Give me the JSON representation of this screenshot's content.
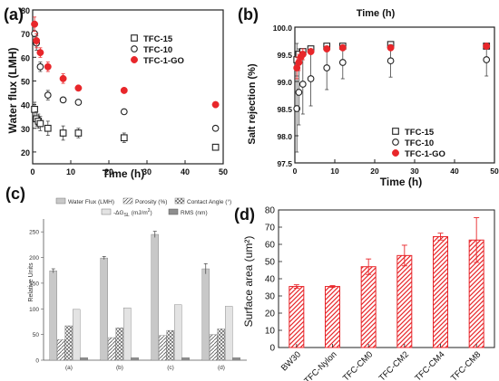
{
  "chart_data": [
    {
      "panel": "(a)",
      "type": "scatter",
      "xlabel": "Time (h)",
      "ylabel": "Water flux (LMH)",
      "xlim": [
        0,
        50
      ],
      "ylim": [
        15,
        80
      ],
      "xticks": [
        "0",
        "10",
        "20",
        "30",
        "40",
        "50"
      ],
      "yticks": [
        "20",
        "30",
        "40",
        "50",
        "60",
        "70",
        "80"
      ],
      "legend_placement": "top-right",
      "series": [
        {
          "name": "TFC-15",
          "marker": "open-square",
          "color": "#222222",
          "points": [
            [
              0.5,
              38,
              3
            ],
            [
              1,
              34,
              3
            ],
            [
              1.5,
              33,
              3
            ],
            [
              2,
              32,
              3
            ],
            [
              4,
              30,
              3
            ],
            [
              8,
              28,
              3
            ],
            [
              12,
              28,
              2
            ],
            [
              24,
              26,
              2
            ],
            [
              48,
              22,
              1
            ]
          ]
        },
        {
          "name": "TFC-10",
          "marker": "open-circle",
          "color": "#222222",
          "points": [
            [
              0.5,
              70,
              3
            ],
            [
              1,
              66,
              3
            ],
            [
              2,
              56,
              2
            ],
            [
              4,
              44,
              2
            ],
            [
              8,
              42,
              1
            ],
            [
              12,
              41,
              1
            ],
            [
              24,
              37,
              1
            ],
            [
              48,
              30,
              1
            ]
          ]
        },
        {
          "name": "TFC-1-GO",
          "marker": "filled-circle",
          "color": "#e8262a",
          "points": [
            [
              0.5,
              74,
              3
            ],
            [
              1,
              67,
              3
            ],
            [
              2,
              62,
              2
            ],
            [
              4,
              56,
              2
            ],
            [
              8,
              51,
              2
            ],
            [
              12,
              47,
              1
            ],
            [
              24,
              46,
              1
            ],
            [
              48,
              40,
              1
            ]
          ]
        }
      ]
    },
    {
      "panel": "(b)",
      "type": "scatter",
      "title": "Time (h)",
      "xlabel": "Time (h)",
      "ylabel": "Salt rejection (%)",
      "xlim": [
        0,
        50
      ],
      "ylim": [
        97.5,
        100.0
      ],
      "xticks": [
        "0",
        "10",
        "20",
        "30",
        "40",
        "50"
      ],
      "yticks": [
        "97.5",
        "98.0",
        "98.5",
        "99.0",
        "99.5",
        "100.0"
      ],
      "legend_placement": "bottom-right",
      "series": [
        {
          "name": "TFC-15",
          "marker": "open-square",
          "color": "#222222",
          "points": [
            [
              0.5,
              99.4,
              0.3
            ],
            [
              1,
              99.5,
              0.1
            ],
            [
              2,
              99.55,
              0.05
            ],
            [
              4,
              99.6,
              0.05
            ],
            [
              8,
              99.65,
              0.03
            ],
            [
              12,
              99.65,
              0.03
            ],
            [
              24,
              99.68,
              0.02
            ],
            [
              48,
              99.65,
              0.02
            ]
          ]
        },
        {
          "name": "TFC-10",
          "marker": "open-circle",
          "color": "#222222",
          "points": [
            [
              0.5,
              98.5,
              0.8
            ],
            [
              1,
              98.8,
              0.6
            ],
            [
              2,
              98.95,
              0.55
            ],
            [
              4,
              99.05,
              0.5
            ],
            [
              8,
              99.25,
              0.4
            ],
            [
              12,
              99.35,
              0.3
            ],
            [
              24,
              99.38,
              0.3
            ],
            [
              48,
              99.4,
              0.3
            ]
          ]
        },
        {
          "name": "TFC-1-GO",
          "marker": "filled-circle",
          "color": "#e8262a",
          "points": [
            [
              0.5,
              99.25,
              0.2
            ],
            [
              1,
              99.35,
              0.15
            ],
            [
              1.5,
              99.45,
              0.1
            ],
            [
              2,
              99.5,
              0.1
            ],
            [
              4,
              99.55,
              0.05
            ],
            [
              8,
              99.6,
              0.05
            ],
            [
              12,
              99.62,
              0.05
            ],
            [
              24,
              99.62,
              0.04
            ],
            [
              48,
              99.65,
              0.03
            ]
          ]
        }
      ]
    },
    {
      "panel": "(c)",
      "type": "bar",
      "ylabel": "Relative Units",
      "ylim": [
        0,
        275
      ],
      "yticks": [
        "0",
        "50",
        "100",
        "150",
        "200",
        "250"
      ],
      "categories": [
        "(a)",
        "(b)",
        "(c)",
        "(d)"
      ],
      "legend_placement": "top",
      "series": [
        {
          "name": "Water Flux (LMH)",
          "pattern": "solid-gray",
          "values": [
            174,
            199,
            245,
            178
          ],
          "errors": [
            4,
            3,
            6,
            10
          ]
        },
        {
          "name": "Porosity (%)",
          "pattern": "diagonal-hatch",
          "values": [
            40,
            44,
            48,
            50
          ],
          "errors": [
            0,
            0,
            0,
            0
          ]
        },
        {
          "name": "Contact Angle (°)",
          "pattern": "cross-hatch",
          "values": [
            67,
            63,
            58,
            61
          ],
          "errors": [
            0,
            0,
            0,
            0
          ]
        },
        {
          "name": "-ΔG_SL (mJ/m²)",
          "pattern": "light-gray",
          "values": [
            99,
            102,
            108,
            105
          ],
          "errors": [
            0,
            0,
            0,
            0
          ]
        },
        {
          "name": "RMS (nm)",
          "pattern": "dark-gray",
          "values": [
            5,
            5,
            5,
            5
          ],
          "errors": [
            0,
            0,
            0,
            0
          ]
        }
      ],
      "legend_labels": [
        "Water Flux (LMH)",
        "Porosity (%)",
        "Contact Angle (°)",
        "-ΔG",
        "SL",
        "(mJ/m",
        "2",
        ")",
        "RMS (nm)"
      ]
    },
    {
      "panel": "(d)",
      "type": "bar",
      "ylabel": "Surface area (um²)",
      "ylim": [
        0,
        80
      ],
      "yticks": [
        "0",
        "10",
        "20",
        "30",
        "40",
        "50",
        "60",
        "70",
        "80"
      ],
      "categories": [
        "BW30",
        "TFC-Nylon",
        "TFC-CM0",
        "TFC-CM2",
        "TFC-CM4",
        "TFC-CM8"
      ],
      "values": [
        35.5,
        35.5,
        47,
        53.5,
        64.5,
        62.5
      ],
      "errors": [
        1,
        0.5,
        4.5,
        6,
        2,
        13
      ],
      "color": "#e8262a"
    }
  ],
  "panel_labels": [
    "(a)",
    "(b)",
    "(c)",
    "(d)"
  ]
}
